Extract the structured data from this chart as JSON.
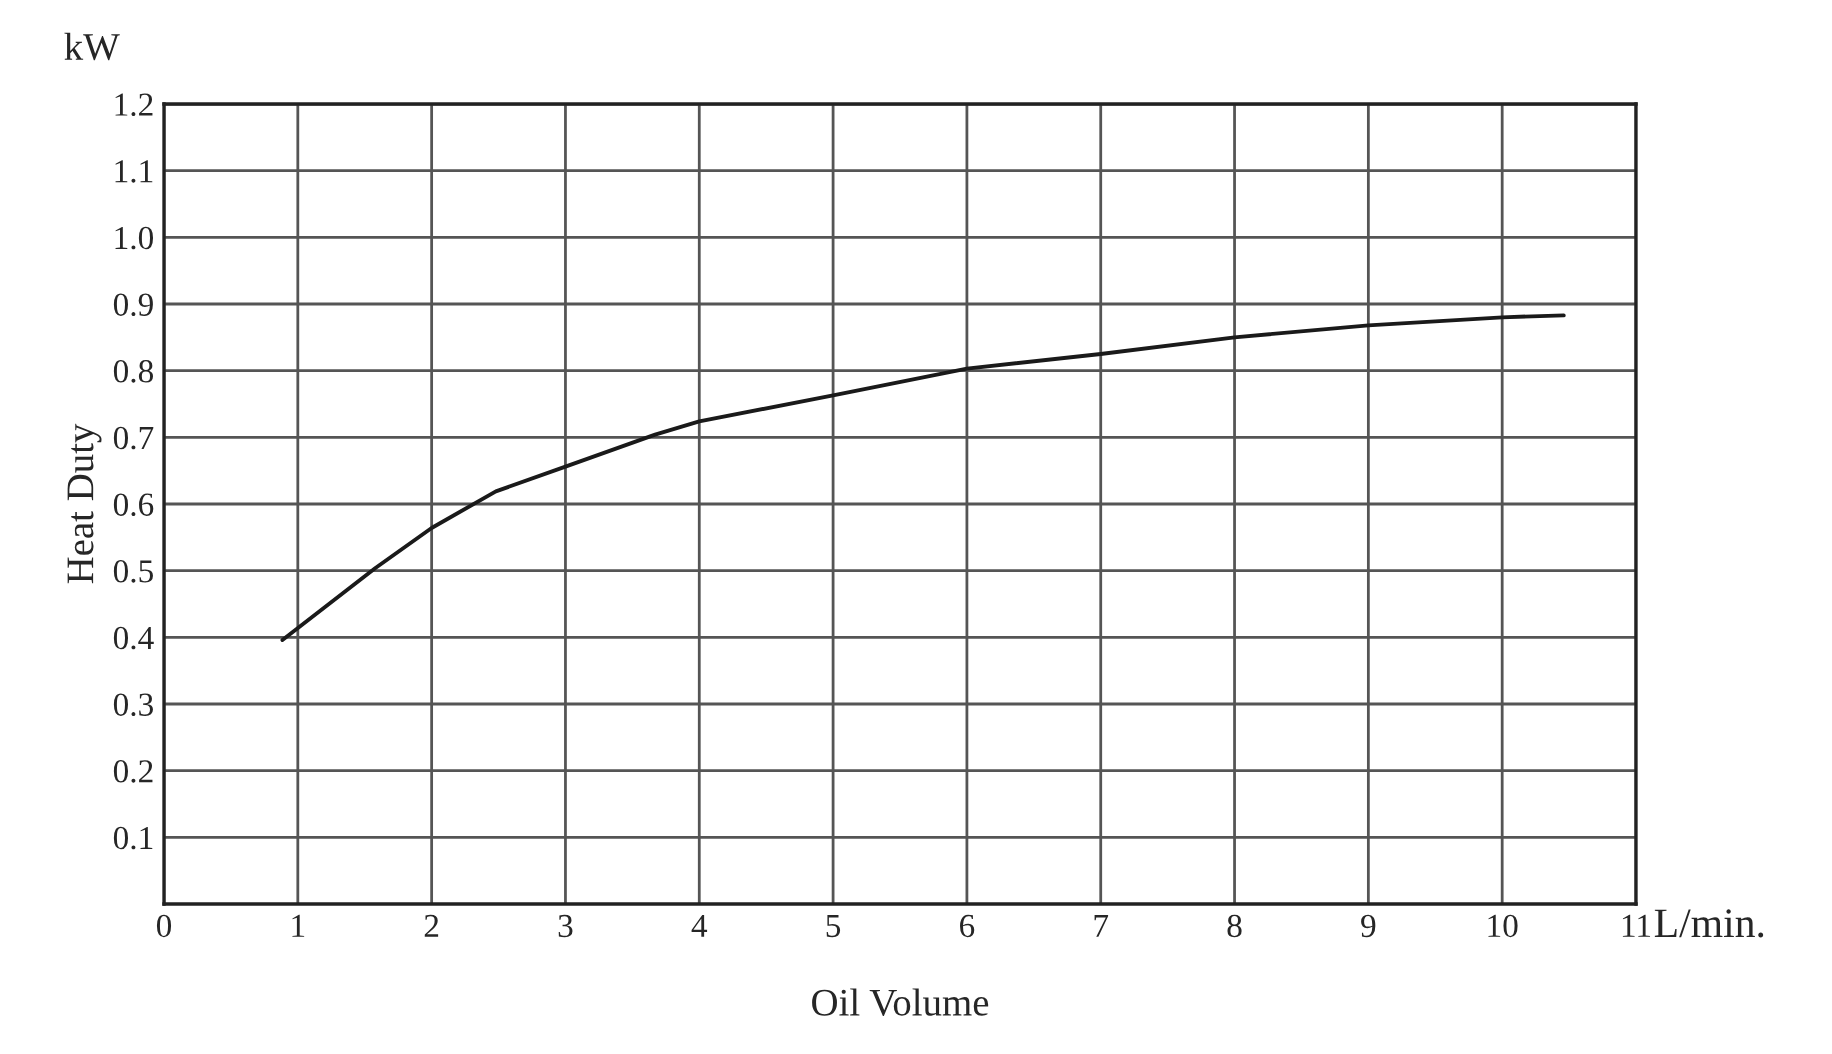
{
  "chart_data": {
    "type": "line",
    "xlabel": "Oil Volume",
    "ylabel": "Heat Duty",
    "annotations": [
      "kW",
      "L/min."
    ],
    "series": [
      {
        "color": "#1a1a1a",
        "x": [
          0.885,
          1.58,
          2.0,
          2.48,
          3.0,
          3.67,
          4.0,
          5.0,
          6.0,
          7.0,
          8.0,
          9.0,
          10.0,
          10.46
        ],
        "values": [
          0.396,
          0.504,
          0.564,
          0.619,
          0.656,
          0.704,
          0.724,
          0.763,
          0.803,
          0.825,
          0.85,
          0.868,
          0.88,
          0.883
        ]
      }
    ],
    "xlim": [
      0,
      11
    ],
    "xticks": [
      0,
      1,
      2,
      3,
      4,
      5,
      6,
      7,
      8,
      9,
      10,
      11
    ],
    "ylim": [
      0,
      1.2
    ],
    "yticks": [
      0.1,
      0.2,
      0.3,
      0.4,
      0.5,
      0.6,
      0.7,
      0.8,
      0.9,
      {
        "value": 1.0,
        "label": "1.0"
      },
      1.1,
      1.2
    ],
    "grid": true,
    "marker": "none",
    "line_style": "solid",
    "legend": false
  }
}
